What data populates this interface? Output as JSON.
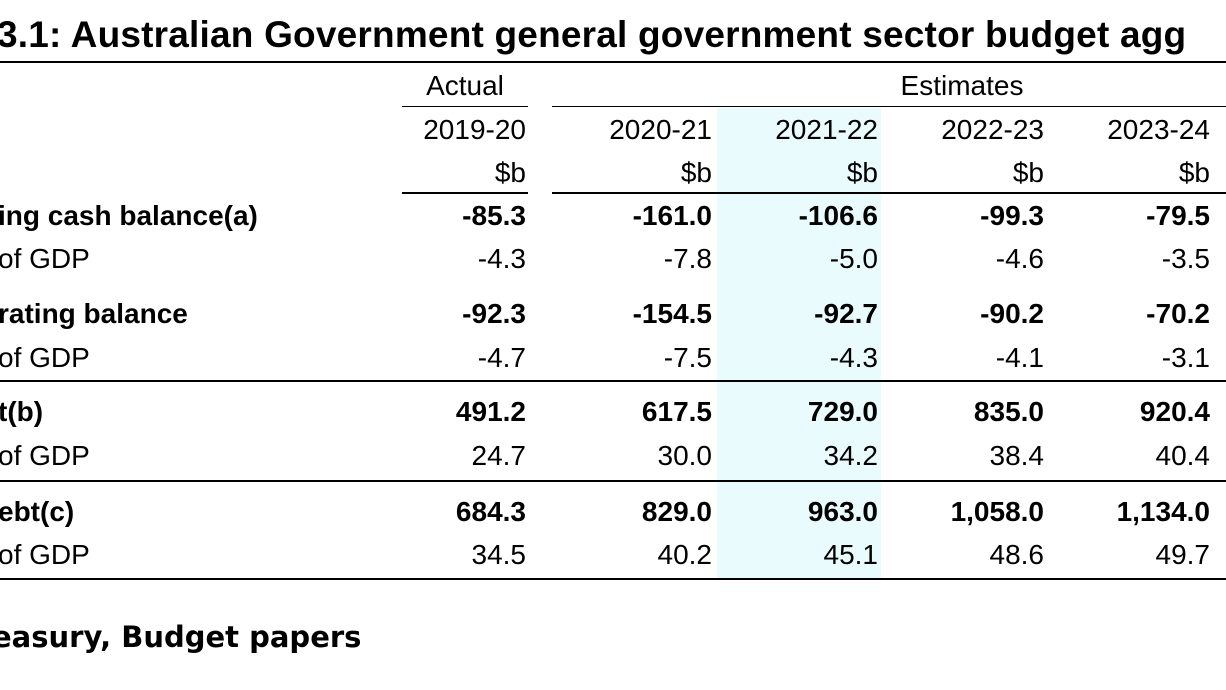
{
  "title": "3.1: Australian Government general government sector budget agg",
  "headers": {
    "actual_label": "Actual",
    "estimates_label": "Estimates",
    "years": [
      "2019-20",
      "2020-21",
      "2021-22",
      "2022-23",
      "2023-24"
    ],
    "units": [
      "$b",
      "$b",
      "$b",
      "$b",
      "$b"
    ]
  },
  "highlight_color": "#e9fbfd",
  "rows": [
    {
      "label": "ing cash balance(a)",
      "bold": true,
      "values": [
        "-85.3",
        "-161.0",
        "-106.6",
        "-99.3",
        "-79.5"
      ]
    },
    {
      "label": " of GDP",
      "bold": false,
      "values": [
        "-4.3",
        "-7.8",
        "-5.0",
        "-4.6",
        "-3.5"
      ]
    },
    {
      "label": "rating balance",
      "bold": true,
      "values": [
        "-92.3",
        "-154.5",
        "-92.7",
        "-90.2",
        "-70.2"
      ]
    },
    {
      "label": " of GDP",
      "bold": false,
      "values": [
        "-4.7",
        "-7.5",
        "-4.3",
        "-4.1",
        "-3.1"
      ]
    },
    {
      "label": "t(b)",
      "bold": true,
      "values": [
        "491.2",
        "617.5",
        "729.0",
        "835.0",
        "920.4"
      ]
    },
    {
      "label": " of GDP",
      "bold": false,
      "values": [
        "24.7",
        "30.0",
        "34.2",
        "38.4",
        "40.4"
      ]
    },
    {
      "label": "ebt(c)",
      "bold": true,
      "values": [
        "684.3",
        "829.0",
        "963.0",
        "1,058.0",
        "1,134.0"
      ]
    },
    {
      "label": " of GDP",
      "bold": false,
      "values": [
        "34.5",
        "40.2",
        "45.1",
        "48.6",
        "49.7"
      ]
    }
  ],
  "source": "easury, Budget papers"
}
